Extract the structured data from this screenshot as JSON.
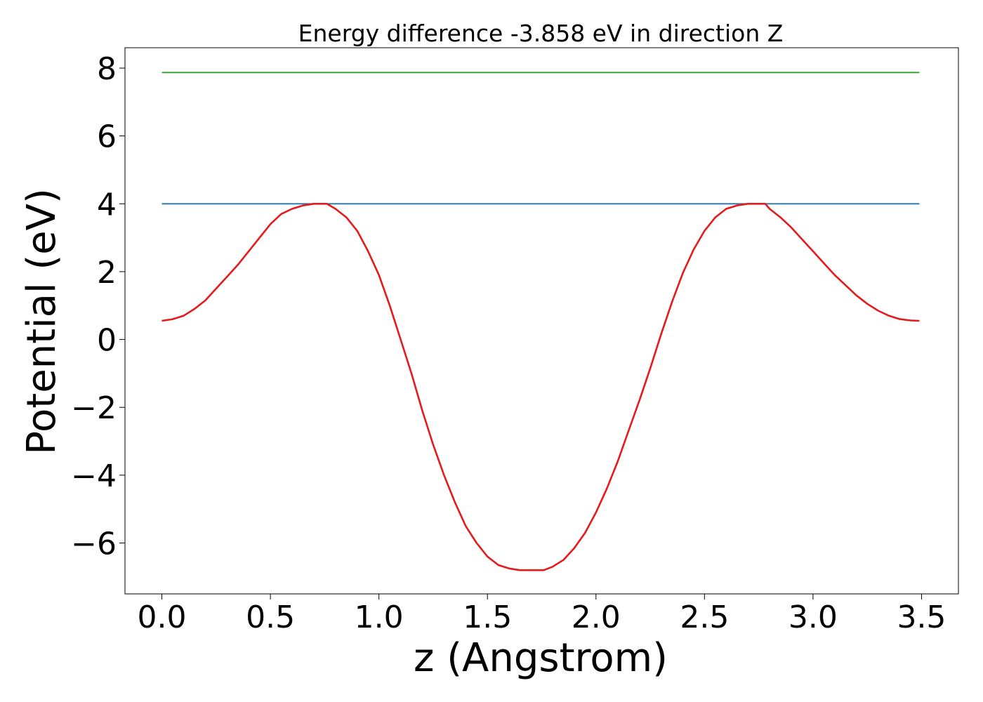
{
  "chart_data": {
    "type": "line",
    "title": "Energy difference -3.858 eV in direction Z",
    "xlabel": "z (Angstrom)",
    "ylabel": "Potential (eV)",
    "xlim": [
      -0.17,
      3.67
    ],
    "ylim": [
      -7.5,
      8.6
    ],
    "x_ticks": [
      0.0,
      0.5,
      1.0,
      1.5,
      2.0,
      2.5,
      3.0,
      3.5
    ],
    "x_tick_labels": [
      "0.0",
      "0.5",
      "1.0",
      "1.5",
      "2.0",
      "2.5",
      "3.0",
      "3.5"
    ],
    "y_ticks": [
      -6,
      -4,
      -2,
      0,
      2,
      4,
      6,
      8
    ],
    "y_tick_labels": [
      "−6",
      "−4",
      "−2",
      "0",
      "2",
      "4",
      "6",
      "8"
    ],
    "grid": false,
    "series": [
      {
        "color": "#2ca02c",
        "x": [
          0.0,
          3.49
        ],
        "y": [
          7.87,
          7.87
        ]
      },
      {
        "color": "#1f77b4",
        "x": [
          0.0,
          3.49
        ],
        "y": [
          4.0,
          4.0
        ]
      },
      {
        "color": "#e41a1c",
        "x": [
          0.0,
          0.05,
          0.1,
          0.15,
          0.2,
          0.25,
          0.3,
          0.35,
          0.4,
          0.45,
          0.5,
          0.55,
          0.6,
          0.65,
          0.7,
          0.76,
          0.8,
          0.85,
          0.9,
          0.95,
          1.0,
          1.05,
          1.1,
          1.15,
          1.2,
          1.25,
          1.3,
          1.35,
          1.4,
          1.45,
          1.5,
          1.55,
          1.6,
          1.65,
          1.7,
          1.76,
          1.8,
          1.85,
          1.9,
          1.95,
          2.0,
          2.05,
          2.1,
          2.15,
          2.2,
          2.25,
          2.3,
          2.35,
          2.4,
          2.45,
          2.5,
          2.55,
          2.6,
          2.65,
          2.7,
          2.78,
          2.8,
          2.85,
          2.9,
          2.95,
          3.0,
          3.05,
          3.1,
          3.15,
          3.2,
          3.25,
          3.3,
          3.35,
          3.4,
          3.45,
          3.49
        ],
        "y": [
          0.55,
          0.6,
          0.7,
          0.9,
          1.15,
          1.5,
          1.85,
          2.2,
          2.6,
          3.0,
          3.4,
          3.7,
          3.85,
          3.95,
          4.0,
          4.0,
          3.85,
          3.6,
          3.2,
          2.6,
          1.9,
          1.0,
          0.0,
          -1.0,
          -2.1,
          -3.1,
          -4.0,
          -4.8,
          -5.5,
          -6.0,
          -6.4,
          -6.65,
          -6.75,
          -6.8,
          -6.8,
          -6.8,
          -6.7,
          -6.5,
          -6.15,
          -5.7,
          -5.1,
          -4.4,
          -3.6,
          -2.7,
          -1.8,
          -0.85,
          0.15,
          1.1,
          1.95,
          2.65,
          3.2,
          3.6,
          3.85,
          3.95,
          4.0,
          4.0,
          3.85,
          3.6,
          3.3,
          2.95,
          2.6,
          2.25,
          1.9,
          1.6,
          1.3,
          1.05,
          0.85,
          0.7,
          0.6,
          0.56,
          0.55
        ]
      }
    ]
  }
}
